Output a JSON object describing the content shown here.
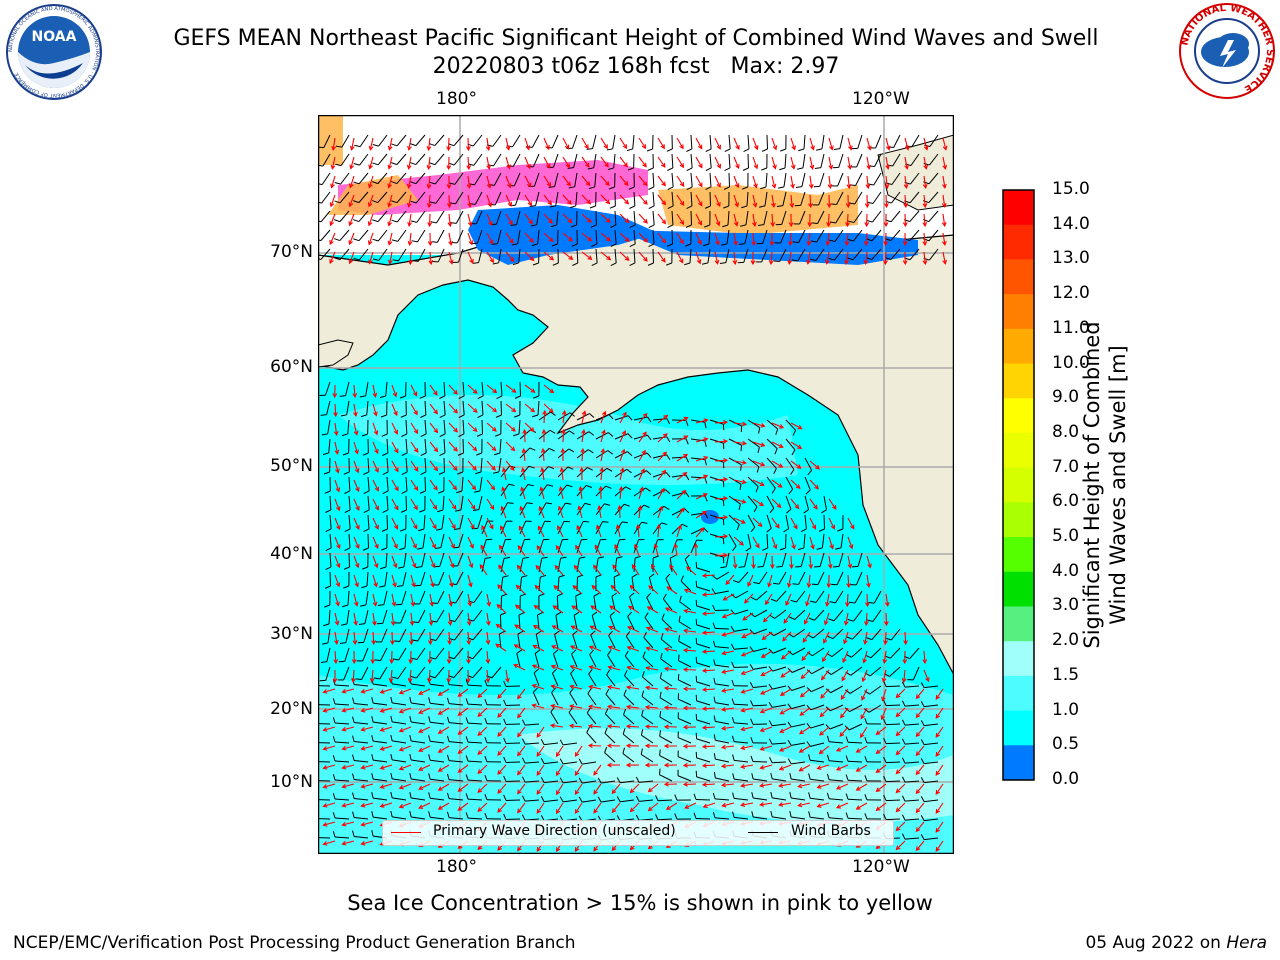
{
  "title": {
    "line1": "GEFS MEAN Northeast Pacific Significant Height of Combined Wind Waves and Swell",
    "line2": "20220803 t06z 168h fcst   Max: 2.97"
  },
  "logos": {
    "left": "NOAA",
    "left_ring": "NATIONAL OCEANIC AND ATMOSPHERIC ADMINISTRATION · U.S. DEPARTMENT OF COMMERCE",
    "right": "NATIONAL WEATHER SERVICE"
  },
  "map": {
    "lon_labels_top": [
      "180°",
      "120°W"
    ],
    "lon_labels_bottom": [
      "180°",
      "120°W"
    ],
    "lat_labels": [
      "70°N",
      "60°N",
      "50°N",
      "40°N",
      "30°N",
      "20°N",
      "10°N"
    ],
    "colors": {
      "land": "#efedda",
      "ocean_low": "#00ffff",
      "ocean_mid": "#4dfcff",
      "ocean_high": "#a0fff8",
      "deep_blue": "#007bff",
      "ice_pink": "#ff4fcf",
      "ice_orange": "#ffb54a",
      "grid": "#aaaaaa",
      "wave_arrow": "#ff0000",
      "wind_barb": "#000000"
    }
  },
  "legend": {
    "wave": "Primary Wave Direction (unscaled)",
    "wind": "Wind Barbs"
  },
  "colorbar": {
    "label_line1": "Significant Height of Combined",
    "label_line2": "Wind Waves and Swell [m]",
    "ticks": [
      "15.0",
      "14.0",
      "13.0",
      "12.0",
      "11.0",
      "10.0",
      "9.0",
      "8.0",
      "7.0",
      "6.0",
      "5.0",
      "4.0",
      "3.0",
      "2.0",
      "1.5",
      "1.0",
      "0.5",
      "0.0"
    ],
    "colors": [
      "#ff0000",
      "#ff2a00",
      "#ff5500",
      "#ff8000",
      "#ffaa00",
      "#ffd400",
      "#ffff00",
      "#eaff00",
      "#d4ff00",
      "#aaff00",
      "#55ff00",
      "#00e000",
      "#55f080",
      "#a0fff8",
      "#4dfcff",
      "#00ffff",
      "#007bff",
      "#0000ff"
    ]
  },
  "footer": {
    "caption": "Sea Ice Concentration > 15% is shown in pink to yellow",
    "left": "NCEP/EMC/Verification Post Processing Product Generation Branch",
    "date": "05 Aug 2022 on",
    "host": "Hera"
  }
}
